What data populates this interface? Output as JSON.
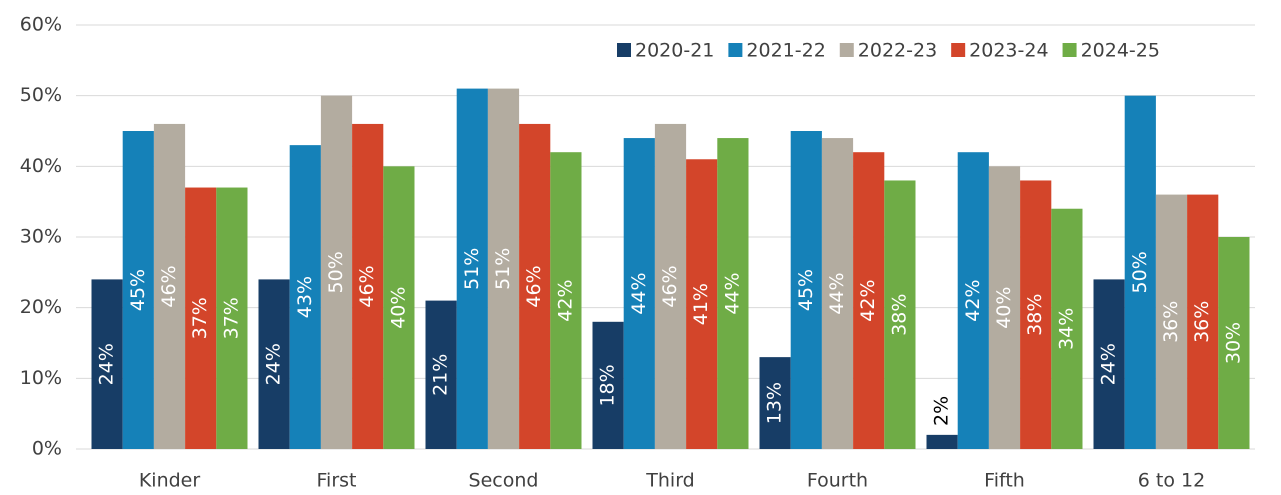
{
  "chart_data": {
    "type": "bar",
    "categories": [
      "Kinder",
      "First",
      "Second",
      "Third",
      "Fourth",
      "Fifth",
      "6 to 12"
    ],
    "series": [
      {
        "name": "2020-21",
        "color": "#173d66",
        "values": [
          24,
          24,
          21,
          18,
          13,
          2,
          24
        ],
        "value_labels": [
          "24%",
          "24%",
          "21%",
          "18%",
          "13%",
          "2%",
          "24%"
        ]
      },
      {
        "name": "2021-22",
        "color": "#1581b8",
        "values": [
          45,
          43,
          51,
          44,
          45,
          42,
          50
        ],
        "value_labels": [
          "45%",
          "43%",
          "51%",
          "44%",
          "45%",
          "42%",
          "50%"
        ]
      },
      {
        "name": "2022-23",
        "color": "#b3aca0",
        "values": [
          46,
          50,
          51,
          46,
          44,
          40,
          36
        ],
        "value_labels": [
          "46%",
          "50%",
          "51%",
          "46%",
          "44%",
          "40%",
          "36%"
        ]
      },
      {
        "name": "2023-24",
        "color": "#d3452a",
        "values": [
          37,
          46,
          46,
          41,
          42,
          38,
          36
        ],
        "value_labels": [
          "37%",
          "46%",
          "46%",
          "41%",
          "42%",
          "38%",
          "36%"
        ]
      },
      {
        "name": "2024-25",
        "color": "#6fac46",
        "values": [
          37,
          40,
          42,
          44,
          38,
          34,
          30
        ],
        "value_labels": [
          "37%",
          "40%",
          "42%",
          "44%",
          "38%",
          "34%",
          "30%"
        ]
      }
    ],
    "ylim": [
      0,
      60
    ],
    "yticks": [
      {
        "value": 0,
        "label": "0%"
      },
      {
        "value": 10,
        "label": "10%"
      },
      {
        "value": 20,
        "label": "20%"
      },
      {
        "value": 30,
        "label": "30%"
      },
      {
        "value": 40,
        "label": "40%"
      },
      {
        "value": 50,
        "label": "50%"
      },
      {
        "value": 60,
        "label": "60%"
      }
    ],
    "grid": true,
    "legend": "top-right"
  }
}
